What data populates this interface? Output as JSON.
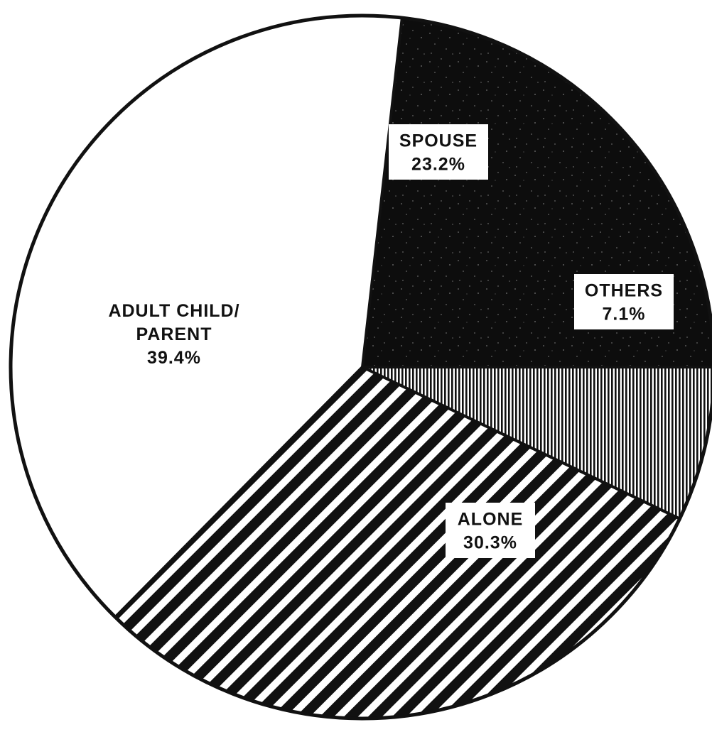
{
  "chart_data": {
    "type": "pie",
    "title": "",
    "start_angle_deg": 0,
    "direction": "counterclockwise",
    "slices": [
      {
        "key": "spouse",
        "label_lines": [
          "SPOUSE"
        ],
        "value_label": "23.2%",
        "value": 23.2,
        "fill": "speckle-black"
      },
      {
        "key": "adult-child-parent",
        "label_lines": [
          "ADULT CHILD/",
          "PARENT"
        ],
        "value_label": "39.4%",
        "value": 39.4,
        "fill": "white"
      },
      {
        "key": "alone",
        "label_lines": [
          "ALONE"
        ],
        "value_label": "30.3%",
        "value": 30.3,
        "fill": "diagonal-hatch"
      },
      {
        "key": "others",
        "label_lines": [
          "OTHERS"
        ],
        "value_label": "7.1%",
        "value": 7.1,
        "fill": "vertical-lines"
      }
    ],
    "colors": {
      "ink": "#111111",
      "paper": "#ffffff"
    }
  }
}
